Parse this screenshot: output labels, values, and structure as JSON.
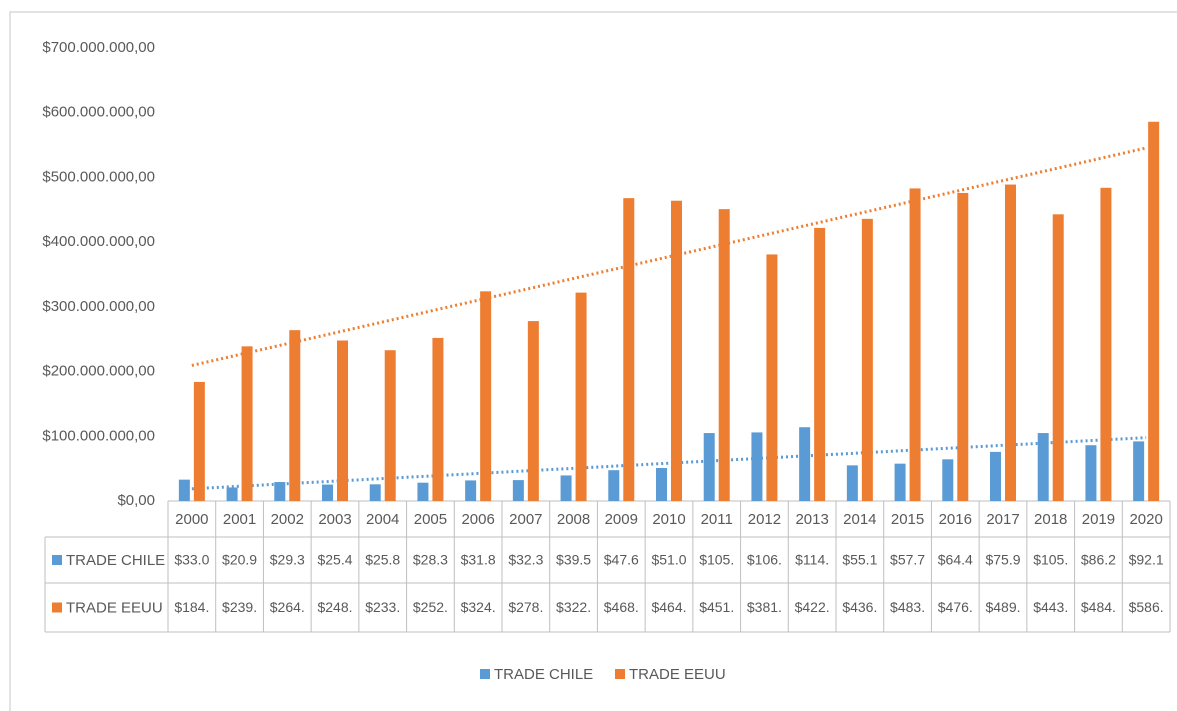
{
  "chart_data": {
    "type": "bar",
    "categories": [
      "2000",
      "2001",
      "2002",
      "2003",
      "2004",
      "2005",
      "2006",
      "2007",
      "2008",
      "2009",
      "2010",
      "2011",
      "2012",
      "2013",
      "2014",
      "2015",
      "2016",
      "2017",
      "2018",
      "2019",
      "2020"
    ],
    "series": [
      {
        "name": "TRADE CHILE",
        "color": "#5b9bd5",
        "trendline": true,
        "values": [
          33000000,
          20900000,
          29300000,
          25400000,
          25800000,
          28300000,
          31800000,
          32300000,
          39500000,
          47600000,
          51000000,
          105000000,
          106000000,
          114000000,
          55100000,
          57700000,
          64400000,
          75900000,
          105000000,
          86200000,
          92100000
        ],
        "value_labels": [
          "$33.0",
          "$20.9",
          "$29.3",
          "$25.4",
          "$25.8",
          "$28.3",
          "$31.8",
          "$32.3",
          "$39.5",
          "$47.6",
          "$51.0",
          "$105.",
          "$106.",
          "$114.",
          "$55.1",
          "$57.7",
          "$64.4",
          "$75.9",
          "$105.",
          "$86.2",
          "$92.1"
        ]
      },
      {
        "name": "TRADE EEUU",
        "color": "#ed7d31",
        "trendline": true,
        "values": [
          184000000,
          239000000,
          264000000,
          248000000,
          233000000,
          252000000,
          324000000,
          278000000,
          322000000,
          468000000,
          464000000,
          451000000,
          381000000,
          422000000,
          436000000,
          483000000,
          476000000,
          489000000,
          443000000,
          484000000,
          586000000
        ],
        "value_labels": [
          "$184.",
          "$239.",
          "$264.",
          "$248.",
          "$233.",
          "$252.",
          "$324.",
          "$278.",
          "$322.",
          "$468.",
          "$464.",
          "$451.",
          "$381.",
          "$422.",
          "$436.",
          "$483.",
          "$476.",
          "$489.",
          "$443.",
          "$484.",
          "$586."
        ]
      }
    ],
    "ylim": [
      0,
      700000000
    ],
    "yticks": [
      {
        "value": 0,
        "label": "$0,00"
      },
      {
        "value": 100000000,
        "label": "$100.000.000,00"
      },
      {
        "value": 200000000,
        "label": "$200.000.000,00"
      },
      {
        "value": 300000000,
        "label": "$300.000.000,00"
      },
      {
        "value": 400000000,
        "label": "$400.000.000,00"
      },
      {
        "value": 500000000,
        "label": "$500.000.000,00"
      },
      {
        "value": 600000000,
        "label": "$600.000.000,00"
      },
      {
        "value": 700000000,
        "label": "$700.000.000,00"
      }
    ],
    "grid": false,
    "legend": "bottom"
  }
}
